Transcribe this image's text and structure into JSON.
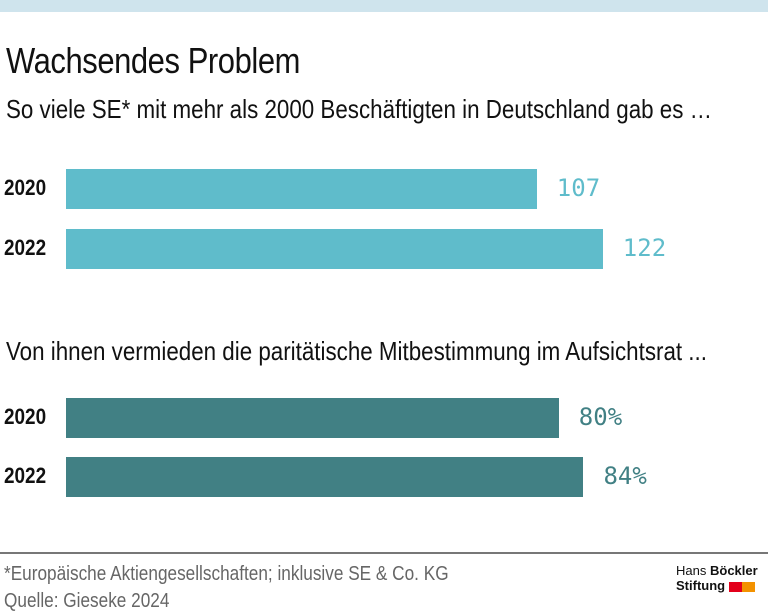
{
  "title": "Wachsendes Problem",
  "footnote": "*Europäische Aktiengesellschaften; inklusive SE & Co. KG",
  "source": "Quelle: Gieseke 2024",
  "logo": {
    "line1_a": "Hans",
    "line1_b": "Böckler",
    "line2": "Stiftung",
    "colors": [
      "#e3001b",
      "#f39200"
    ]
  },
  "colors": {
    "top_band": "#cfe4ed",
    "series1": "#5fbccb",
    "series2": "#418084"
  },
  "chart_data": [
    {
      "type": "bar",
      "orientation": "horizontal",
      "title": "So viele SE* mit mehr als 2000 Beschäftigten in Deutschland gab es …",
      "categories": [
        "2020",
        "2022"
      ],
      "values": [
        107,
        122
      ],
      "labels": [
        "107",
        "122"
      ],
      "color": "#5fbccb"
    },
    {
      "type": "bar",
      "orientation": "horizontal",
      "title": "Von ihnen vermieden die paritätische Mitbestimmung im Aufsichtsrat ...",
      "categories": [
        "2020",
        "2022"
      ],
      "values": [
        80,
        84
      ],
      "unit": "%",
      "labels": [
        "80%",
        "84%"
      ],
      "color": "#418084"
    }
  ]
}
